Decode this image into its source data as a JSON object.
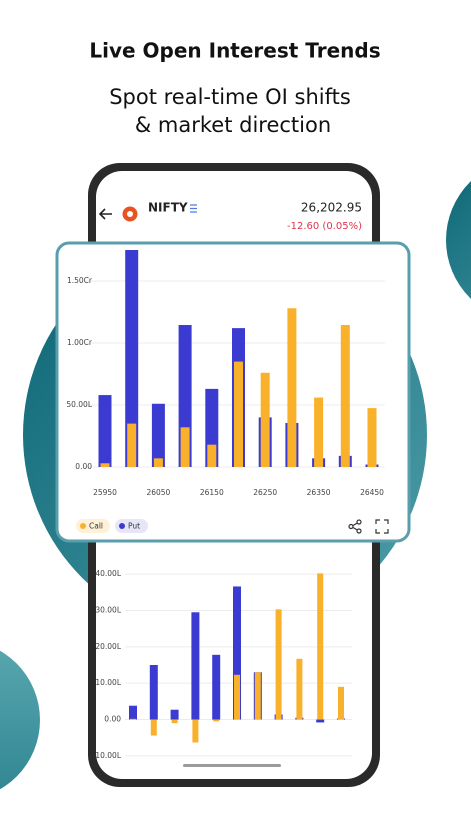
{
  "header": {
    "title": "Live Open Interest Trends",
    "subtitle_lines": [
      "Spot real-time OI shifts",
      "& market direction"
    ]
  },
  "quote": {
    "symbol": "NIFTY",
    "price": "26,202.95",
    "change": "-12.60 (0.05%)"
  },
  "chart_data": [
    {
      "type": "bar",
      "categories": [
        25950,
        null,
        26050,
        null,
        26150,
        null,
        26250,
        null,
        26350,
        null,
        26450
      ],
      "series": [
        {
          "name": "Put",
          "color": "#3b3bd1",
          "values": [
            5800000,
            17500000,
            5100000,
            11450000,
            6300000,
            11200000,
            4000000,
            3550000,
            700000,
            900000,
            200000
          ]
        },
        {
          "name": "Call",
          "color": "#f9b02a",
          "values": [
            300000,
            3500000,
            700000,
            3200000,
            1800000,
            8500000,
            7600000,
            12800000,
            5600000,
            11450000,
            4750000
          ]
        }
      ],
      "ylim": [
        0,
        17500000
      ],
      "yticks": [
        {
          "value": 0,
          "label": "0.00"
        },
        {
          "value": 5000000,
          "label": "50.00L"
        },
        {
          "value": 10000000,
          "label": "1.00Cr"
        },
        {
          "value": 15000000,
          "label": "1.50Cr"
        }
      ],
      "grid": true,
      "legend_order": [
        "Call",
        "Put"
      ]
    },
    {
      "type": "bar",
      "series": [
        {
          "name": "Put",
          "color": "#3b3bd1",
          "values": [
            380000,
            1500000,
            270000,
            2950000,
            1780000,
            3660000,
            1300000,
            140000,
            50000,
            -80000,
            30000
          ]
        },
        {
          "name": "Call",
          "color": "#f9b02a",
          "values": [
            20000,
            -440000,
            -100000,
            -630000,
            -50000,
            1230000,
            1300000,
            3030000,
            1670000,
            4020000,
            900000
          ]
        }
      ],
      "ylim": [
        -1250000,
        4250000
      ],
      "yticks": [
        {
          "value": -1000000,
          "label": "-10.00L"
        },
        {
          "value": 0,
          "label": "0.00"
        },
        {
          "value": 1000000,
          "label": "10.00L"
        },
        {
          "value": 2000000,
          "label": "20.00L"
        },
        {
          "value": 3000000,
          "label": "30.00L"
        },
        {
          "value": 4000000,
          "label": "40.00L"
        }
      ],
      "grid": true
    }
  ]
}
